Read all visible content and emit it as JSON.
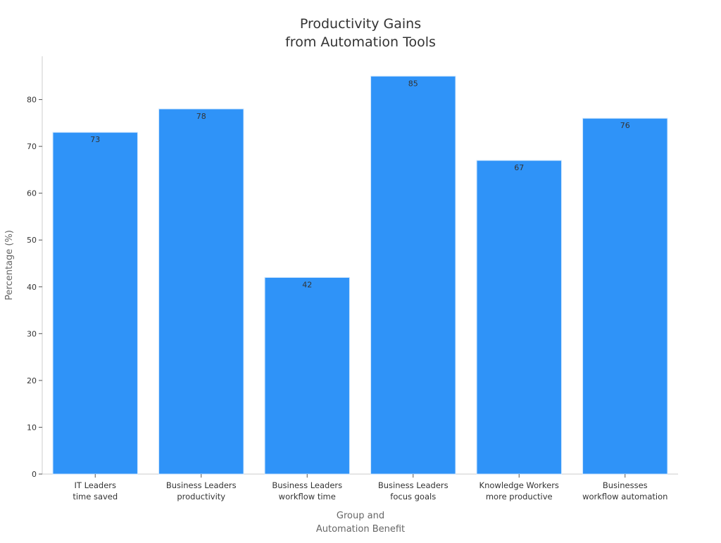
{
  "chart_data": {
    "type": "bar",
    "title": [
      "Productivity Gains",
      "from Automation Tools"
    ],
    "xlabel": [
      "Group and",
      "Automation Benefit"
    ],
    "ylabel": "Percentage (%)",
    "categories": [
      [
        "IT Leaders",
        "time saved"
      ],
      [
        "Business Leaders",
        "productivity"
      ],
      [
        "Business Leaders",
        "workflow time"
      ],
      [
        "Business Leaders",
        "focus goals"
      ],
      [
        "Knowledge Workers",
        "more productive"
      ],
      [
        "Businesses",
        "workflow automation"
      ]
    ],
    "values": [
      73,
      78,
      42,
      85,
      67,
      76
    ],
    "data_labels": [
      "73",
      "78",
      "42",
      "85",
      "67",
      "76"
    ],
    "yticks": [
      0,
      10,
      20,
      30,
      40,
      50,
      60,
      70,
      80
    ],
    "ylim": [
      0,
      89.25
    ],
    "grid": false,
    "colors": {
      "bar": "#2f93f8",
      "bar_edge": "#cfe6fd",
      "axis": "#cccccc",
      "text": "#333333"
    }
  }
}
